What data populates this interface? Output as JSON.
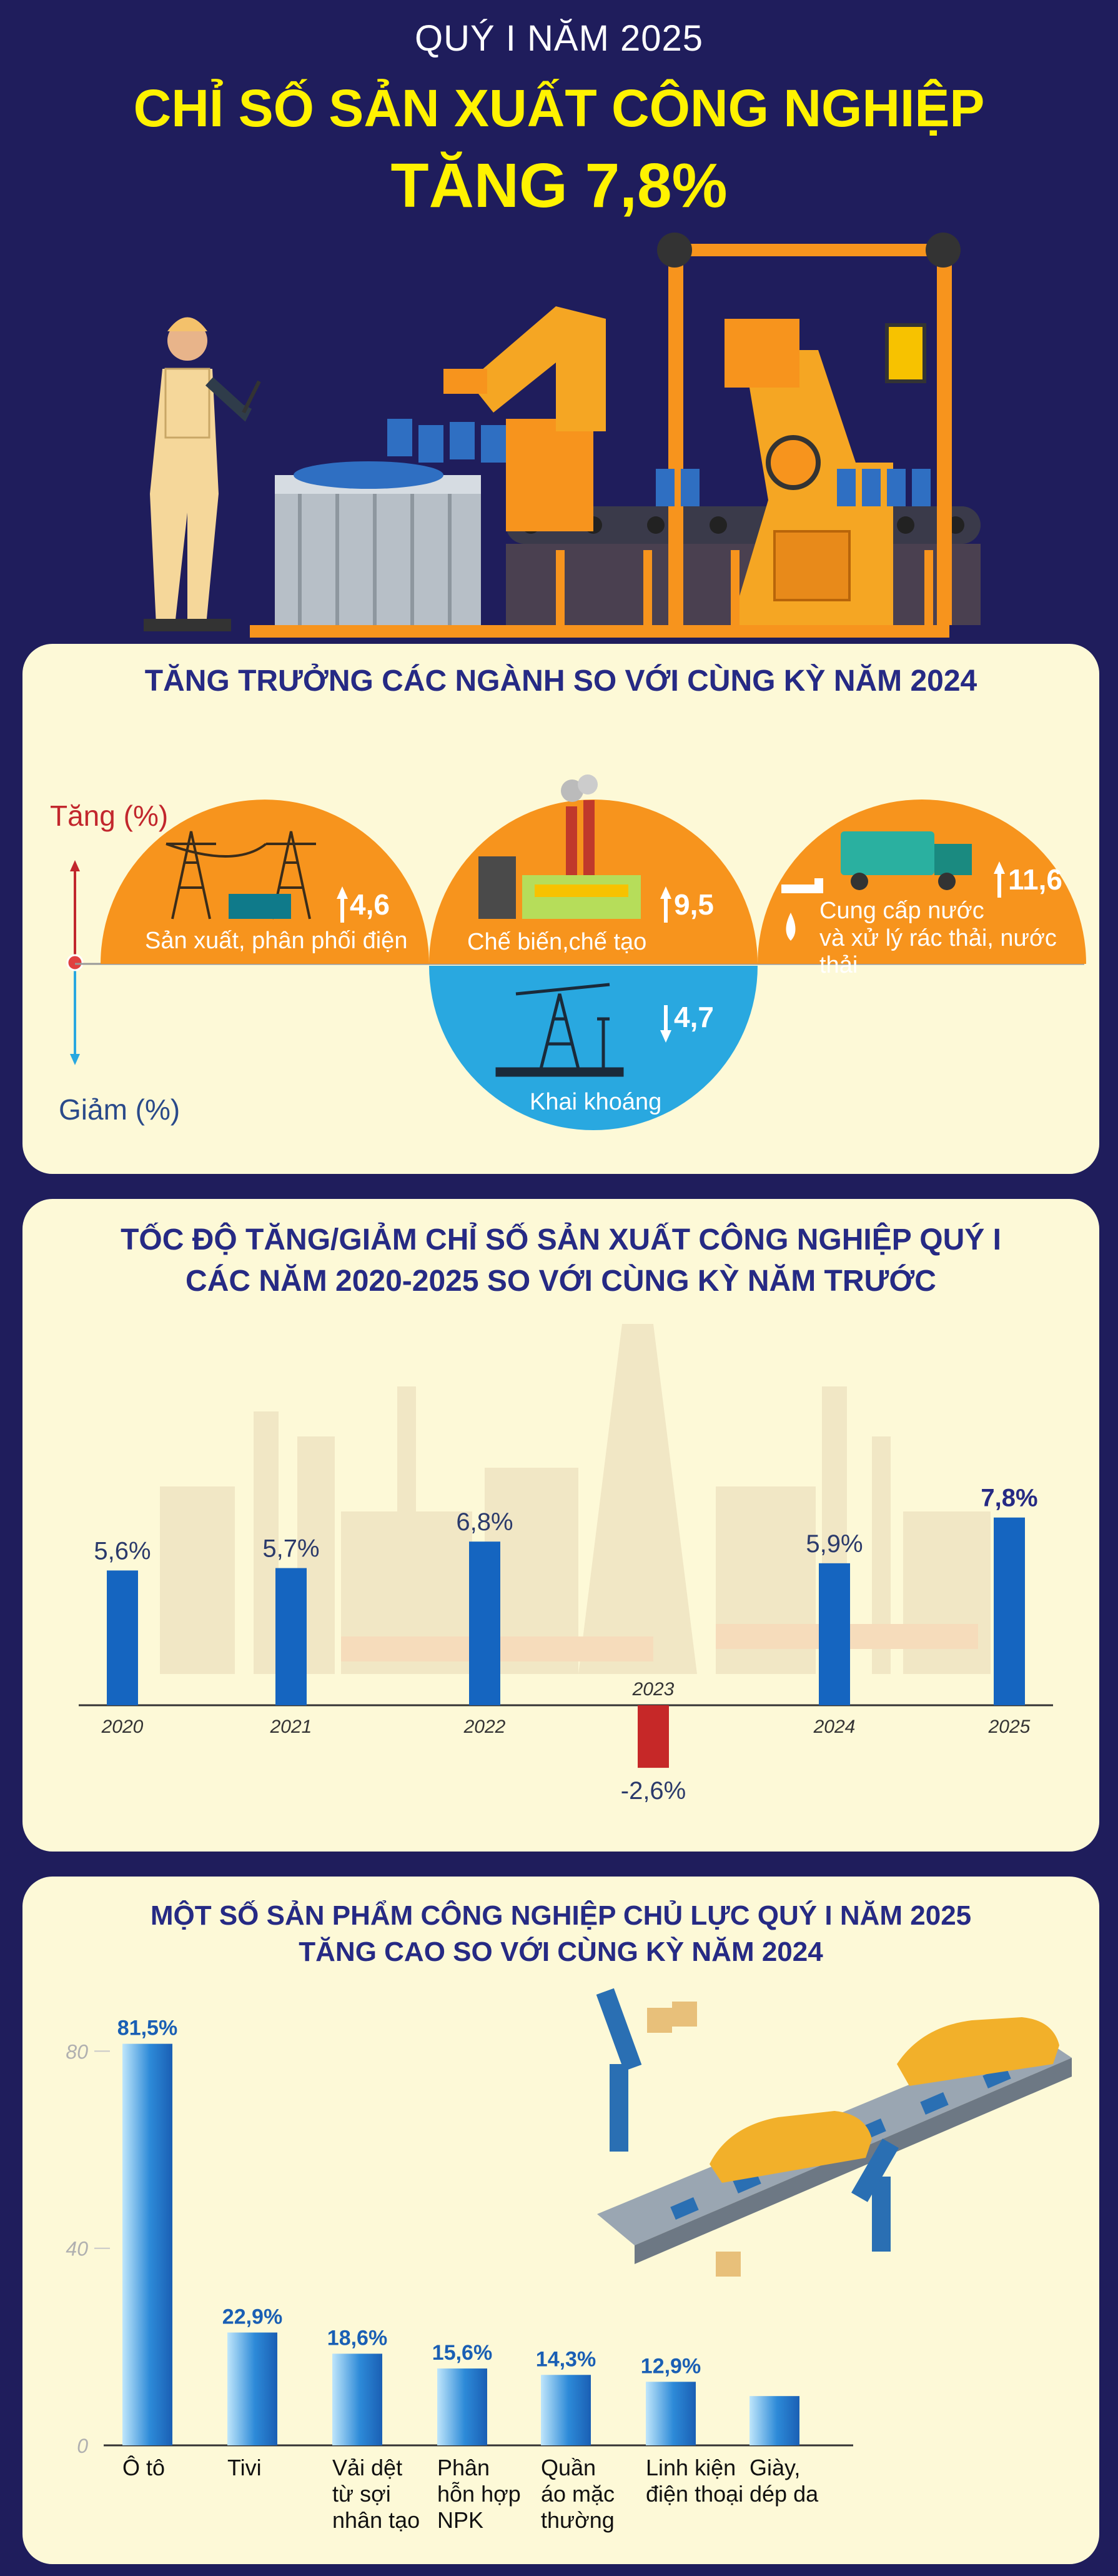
{
  "header": {
    "subtitle": "QUÝ I NĂM 2025",
    "title_line1": "CHỈ SỐ SẢN XUẤT CÔNG NGHIỆP",
    "title_line2": "TĂNG 7,8%"
  },
  "sectors": {
    "title": "TĂNG TRƯỞNG CÁC NGÀNH SO VỚI CÙNG KỲ NĂM 2024",
    "up_label": "Tăng (%)",
    "down_label": "Giảm (%)",
    "items": [
      {
        "label": "Sản xuất, phân phối điện",
        "value": "4,6",
        "direction": "up",
        "icon": "power-tower-icon"
      },
      {
        "label": "Chế biến,chế tạo",
        "value": "9,5",
        "direction": "up",
        "icon": "factory-icon"
      },
      {
        "label_line1": "Cung cấp nước",
        "label_line2": "và xử lý rác thải, nước thải",
        "value": "11,6",
        "direction": "up",
        "icon": "garbage-truck-icon"
      },
      {
        "label": "Khai khoáng",
        "value": "4,7",
        "direction": "down",
        "icon": "oil-pump-icon"
      }
    ],
    "colors": {
      "up": "#f7941d",
      "down": "#29a8e0"
    }
  },
  "chart_data": [
    {
      "type": "bar",
      "title": "TỐC ĐỘ TĂNG/GIẢM CHỈ SỐ SẢN XUẤT CÔNG NGHIỆP QUÝ I CÁC NĂM 2020-2025 SO VỚI CÙNG KỲ NĂM TRƯỚC",
      "title_line1": "TỐC ĐỘ TĂNG/GIẢM CHỈ SỐ SẢN XUẤT CÔNG NGHIỆP QUÝ I",
      "title_line2": "CÁC NĂM 2020-2025 SO VỚI CÙNG KỲ NĂM TRƯỚC",
      "categories": [
        "2020",
        "2021",
        "2022",
        "2023",
        "2024",
        "2025"
      ],
      "values": [
        5.6,
        5.7,
        6.8,
        -2.6,
        5.9,
        7.8
      ],
      "labels": [
        "5,6%",
        "5,7%",
        "6,8%",
        "-2,6%",
        "5,9%",
        "7,8%"
      ],
      "colors": {
        "positive": "#1565c0",
        "negative": "#c62828"
      }
    },
    {
      "type": "bar",
      "title": "MỘT SỐ SẢN PHẨM CÔNG NGHIỆP CHỦ LỰC QUÝ I NĂM 2025 TĂNG CAO SO VỚI CÙNG KỲ NĂM 2024",
      "title_line1": "MỘT SỐ SẢN PHẨM CÔNG NGHIỆP CHỦ LỰC QUÝ I NĂM 2025",
      "title_line2": "TĂNG CAO SO VỚI CÙNG KỲ NĂM 2024",
      "categories": [
        [
          "Ô tô"
        ],
        [
          "Tivi"
        ],
        [
          "Vải dệt",
          "từ sợi",
          "nhân tạo"
        ],
        [
          "Phân",
          "hỗn hợp",
          "NPK"
        ],
        [
          "Quần",
          "áo mặc",
          "thường"
        ],
        [
          "Linh kiện",
          "điện thoại"
        ],
        [
          "Giày,",
          "dép da"
        ]
      ],
      "values": [
        81.5,
        22.9,
        18.6,
        15.6,
        14.3,
        12.9,
        10
      ],
      "labels": [
        "81,5%",
        "22,9%",
        "18,6%",
        "15,6%",
        "14,3%",
        "12,9%",
        ""
      ],
      "y_ticks": [
        "0",
        "40",
        "80"
      ],
      "ylim": [
        0,
        85
      ]
    }
  ]
}
